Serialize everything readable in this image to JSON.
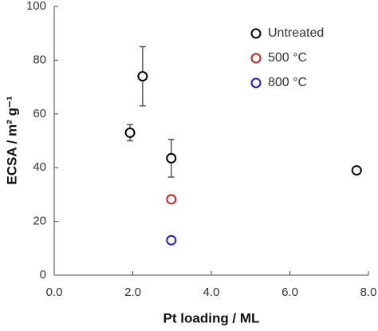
{
  "chart_data": {
    "type": "scatter",
    "xlabel": "Pt loading / ML",
    "ylabel": "ECSA / m² g⁻¹",
    "xlim": [
      0,
      8
    ],
    "ylim": [
      0,
      100
    ],
    "xticks": [
      {
        "value": 0,
        "label": "0.0"
      },
      {
        "value": 2,
        "label": "2.0"
      },
      {
        "value": 4,
        "label": "4.0"
      },
      {
        "value": 6,
        "label": "6.0"
      },
      {
        "value": 8,
        "label": "8.0"
      }
    ],
    "yticks": [
      0,
      20,
      40,
      60,
      80,
      100
    ],
    "legend": "upper right",
    "series": [
      {
        "name": "Untreated",
        "color": "#000000",
        "x": [
          1.93,
          2.25,
          2.98,
          7.7
        ],
        "values": [
          53,
          74,
          43.5,
          39
        ],
        "errors": [
          3,
          11,
          7,
          1
        ]
      },
      {
        "name": "500 °C",
        "color": "#d42020",
        "x": [
          2.98
        ],
        "values": [
          28.2
        ]
      },
      {
        "name": "800 °C",
        "color": "#1f1fc8",
        "x": [
          2.98
        ],
        "values": [
          13
        ]
      }
    ]
  }
}
